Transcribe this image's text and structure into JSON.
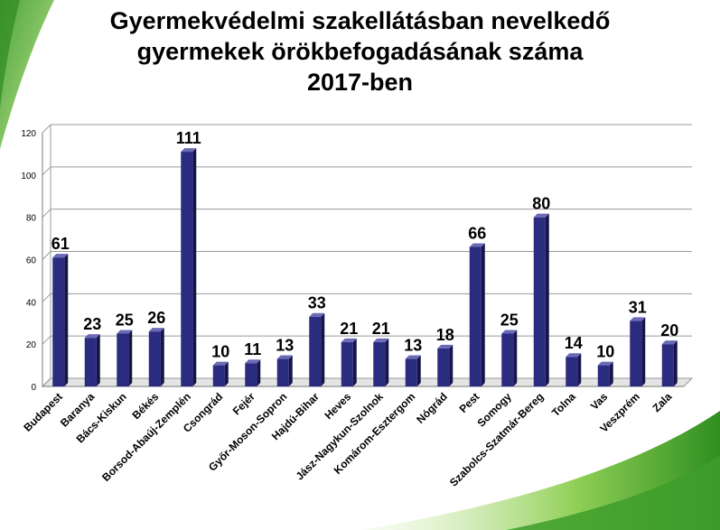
{
  "slide": {
    "title_lines": [
      "Gyermekvédelmi szakellátásban nevelkedő",
      "gyermekek örökbefogadásának száma",
      "2017-ben"
    ],
    "colors": {
      "bar": "#2b2b80",
      "bar_top": "#6a6ab8",
      "bar_side": "#15154a",
      "accent_green": "#3a9a2a",
      "accent_light": "#b9e27c"
    }
  },
  "chart_data": {
    "type": "bar",
    "title": "Gyermekvédelmi szakellátásban nevelkedő gyermekek örökbefogadásának száma 2017-ben",
    "categories": [
      "Budapest",
      "Baranya",
      "Bács-Kiskun",
      "Békés",
      "Borsod-Abaúj-Zemplén",
      "Csongrád",
      "Fejér",
      "Győr-Moson-Sopron",
      "Hajdú-Bihar",
      "Heves",
      "Jász-Nagykun-Szolnok",
      "Komárom-Esztergom",
      "Nógrád",
      "Pest",
      "Somogy",
      "Szabolcs-Szatmár-Bereg",
      "Tolna",
      "Vas",
      "Veszprém",
      "Zala"
    ],
    "values": [
      61,
      23,
      25,
      26,
      111,
      10,
      11,
      13,
      33,
      21,
      21,
      13,
      18,
      66,
      25,
      80,
      14,
      10,
      31,
      20
    ],
    "ylim": [
      0,
      120
    ],
    "yticks": [
      0,
      20,
      40,
      60,
      80,
      100,
      120
    ],
    "xlabel": "",
    "ylabel": "",
    "grid": true,
    "data_labels": true
  }
}
